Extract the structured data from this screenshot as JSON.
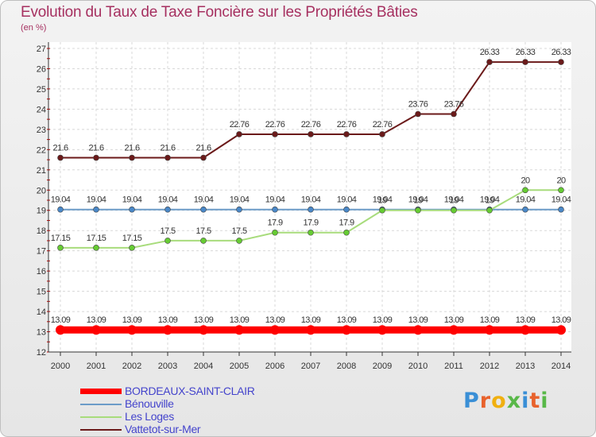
{
  "title": "Evolution du Taux de Taxe Foncière sur les Propriétés Bâties",
  "unit_label": "(en %)",
  "logo_text": "Proxiti",
  "chart_data": {
    "type": "line",
    "x": [
      "2000",
      "2001",
      "2002",
      "2003",
      "2004",
      "2005",
      "2006",
      "2007",
      "2008",
      "2009",
      "2010",
      "2011",
      "2012",
      "2013",
      "2014"
    ],
    "ylim": [
      12,
      27
    ],
    "yticks": [
      "12",
      "13",
      "14",
      "15",
      "16",
      "17",
      "18",
      "19",
      "20",
      "21",
      "22",
      "23",
      "24",
      "25",
      "26",
      "27"
    ],
    "grid": true,
    "series": [
      {
        "name": "Vattetot-sur-Mer",
        "color": "#6b1a1a",
        "marker": "#6b1a1a",
        "values": [
          21.6,
          21.6,
          21.6,
          21.6,
          21.6,
          22.76,
          22.76,
          22.76,
          22.76,
          22.76,
          23.76,
          23.76,
          26.33,
          26.33,
          26.33
        ],
        "labels": [
          "21.6",
          "21.6",
          "21.6",
          "21.6",
          "21.6",
          "22.76",
          "22.76",
          "22.76",
          "22.76",
          "22.76",
          "23.76",
          "23.76",
          "26.33",
          "26.33",
          "26.33"
        ]
      },
      {
        "name": "Bénouville",
        "color": "#6c9cc8",
        "marker": "#4a88c8",
        "values": [
          19.04,
          19.04,
          19.04,
          19.04,
          19.04,
          19.04,
          19.04,
          19.04,
          19.04,
          19.04,
          19.04,
          19.04,
          19.04,
          19.04,
          19.04
        ],
        "labels": [
          "19.04",
          "19.04",
          "19.04",
          "19.04",
          "19.04",
          "19.04",
          "19.04",
          "19.04",
          "19.04",
          "19.04",
          "19.04",
          "19.04",
          "19.04",
          "19.04",
          "19.04"
        ]
      },
      {
        "name": "Les Loges",
        "color": "#a8dc7c",
        "marker": "#66cc33",
        "values": [
          17.15,
          17.15,
          17.15,
          17.5,
          17.5,
          17.5,
          17.9,
          17.9,
          17.9,
          19.0,
          19.0,
          19.0,
          19.0,
          20,
          20
        ],
        "labels": [
          "17.15",
          "17.15",
          "17.15",
          "17.5",
          "17.5",
          "17.5",
          "17.9",
          "17.9",
          "17.9",
          "19",
          "19",
          "19",
          "19",
          "20",
          "20"
        ]
      },
      {
        "name": "BORDEAUX-SAINT-CLAIR",
        "color": "#ff0000",
        "marker": "#ff0000",
        "values": [
          13.09,
          13.09,
          13.09,
          13.09,
          13.09,
          13.09,
          13.09,
          13.09,
          13.09,
          13.09,
          13.09,
          13.09,
          13.09,
          13.09,
          13.09
        ],
        "labels": [
          "13.09",
          "13.09",
          "13.09",
          "13.09",
          "13.09",
          "13.09",
          "13.09",
          "13.09",
          "13.09",
          "13.09",
          "13.09",
          "13.09",
          "13.09",
          "13.09",
          "13.09"
        ]
      }
    ],
    "legend": [
      {
        "name": "BORDEAUX-SAINT-CLAIR",
        "color": "#ff0000"
      },
      {
        "name": "Bénouville",
        "color": "#6c9cc8"
      },
      {
        "name": "Les Loges",
        "color": "#a8dc7c"
      },
      {
        "name": "Vattetot-sur-Mer",
        "color": "#6b1a1a"
      }
    ]
  }
}
